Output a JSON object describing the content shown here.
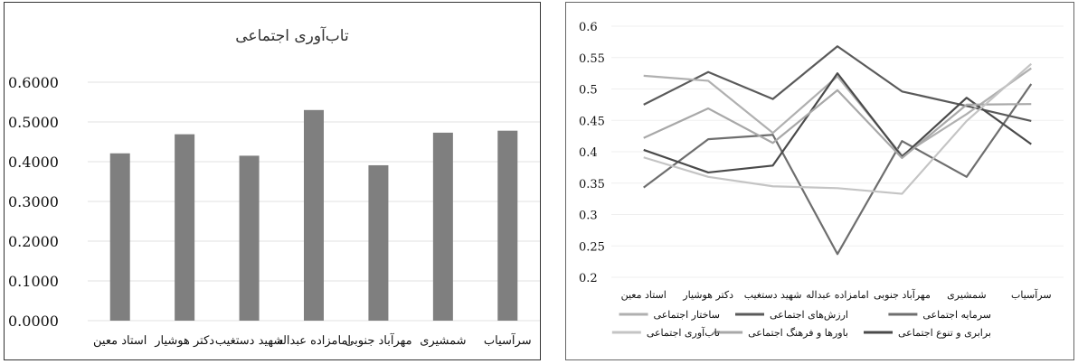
{
  "chart_data": [
    {
      "type": "bar",
      "title": "تاب‌آوری اجتماعی",
      "categories": [
        "استاد معین",
        "دکتر هوشیار",
        "شهید دستغیب",
        "امامزاده عبداله",
        "مهرآباد جنوبی",
        "شمشیری",
        "سرآسیاب"
      ],
      "values": [
        0.421,
        0.469,
        0.415,
        0.53,
        0.391,
        0.473,
        0.478
      ],
      "ylim": [
        0,
        0.6
      ],
      "yticks": [
        "0.0000",
        "0.1000",
        "0.2000",
        "0.3000",
        "0.4000",
        "0.5000",
        "0.6000"
      ],
      "bar_color": "#7f7f7f",
      "grid": true
    },
    {
      "type": "line",
      "categories": [
        "استاد معین",
        "دکتر هوشیار",
        "شهید دستغیب",
        "امامزاده عبداله",
        "مهرآباد جنوبی",
        "شمشیری",
        "سرآسیاب"
      ],
      "ylim": [
        0.2,
        0.6
      ],
      "yticks": [
        "0.2",
        "0.25",
        "0.3",
        "0.35",
        "0.4",
        "0.45",
        "0.5",
        "0.55",
        "0.6"
      ],
      "legend_position": "bottom",
      "series": [
        {
          "name": "سرمایه اجتماعی",
          "color": "#6e6e6e",
          "values": [
            0.343,
            0.42,
            0.427,
            0.237,
            0.417,
            0.36,
            0.508
          ]
        },
        {
          "name": "ارزش‌های اجتماعی",
          "color": "#5a5a5a",
          "values": [
            0.475,
            0.527,
            0.484,
            0.568,
            0.496,
            0.473,
            0.449
          ]
        },
        {
          "name": "ساختار اجتماعی",
          "color": "#b0b0b0",
          "values": [
            0.521,
            0.513,
            0.43,
            0.52,
            0.394,
            0.46,
            0.533
          ]
        },
        {
          "name": "برابری و تنوع اجتماعی",
          "color": "#4a4a4a",
          "values": [
            0.403,
            0.367,
            0.378,
            0.525,
            0.392,
            0.486,
            0.412
          ]
        },
        {
          "name": "باورها و فرهنگ اجتماعی",
          "color": "#a8a8a8",
          "values": [
            0.422,
            0.469,
            0.414,
            0.498,
            0.39,
            0.475,
            0.476
          ]
        },
        {
          "name": "تاب‌آوری اجتماعی",
          "color": "#c4c4c4",
          "values": [
            0.391,
            0.36,
            0.345,
            0.342,
            0.333,
            0.449,
            0.54
          ]
        }
      ]
    }
  ]
}
